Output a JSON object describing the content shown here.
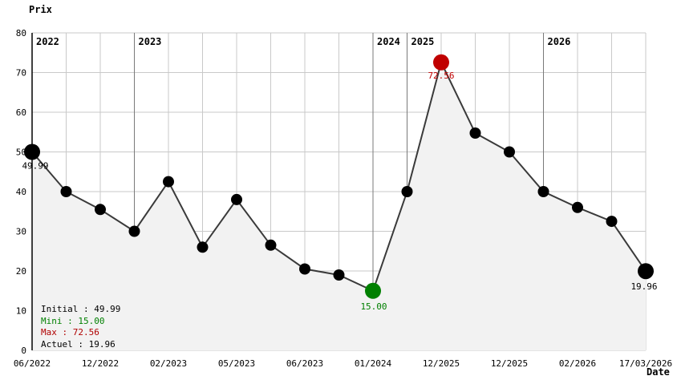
{
  "title": "Prix",
  "x_axis_title": "Date",
  "legend": {
    "entries": [
      {
        "text": "Initial : 49.99",
        "color": "#000000"
      },
      {
        "text": "Mini : 15.00",
        "color": "#008000"
      },
      {
        "text": "Max : 72.56",
        "color": "#b00000"
      },
      {
        "text": "Actuel : 19.96",
        "color": "#000000"
      }
    ]
  },
  "colors": {
    "grid": "#c9c9c9",
    "year_line": "#7a7a7a",
    "area_fill": "#f2f2f2",
    "line": "#3a3a3a",
    "point": "#000000",
    "axis": "#000000",
    "tick_text": "#000000"
  },
  "chart_data": {
    "type": "line",
    "title": "Prix",
    "xlabel": "Date",
    "ylabel": "Prix",
    "ylim": [
      0,
      80
    ],
    "grid": true,
    "area_fill": true,
    "legend_position": "bottom-left",
    "y_ticks": [
      0,
      10,
      20,
      30,
      40,
      50,
      60,
      70,
      80
    ],
    "values": [
      49.99,
      40,
      35.5,
      30,
      42.5,
      26,
      38,
      26.5,
      20.5,
      19,
      15,
      40,
      72.56,
      54.75,
      50,
      40,
      36,
      32.5,
      19.96
    ],
    "x_ticks": [
      {
        "index": 0,
        "label": "06/2022"
      },
      {
        "index": 2,
        "label": "12/2022"
      },
      {
        "index": 4,
        "label": "02/2023"
      },
      {
        "index": 6,
        "label": "05/2023"
      },
      {
        "index": 8,
        "label": "06/2023"
      },
      {
        "index": 10,
        "label": "01/2024"
      },
      {
        "index": 12,
        "label": "12/2025"
      },
      {
        "index": 14,
        "label": "12/2025"
      },
      {
        "index": 16,
        "label": "02/2026"
      },
      {
        "index": 18,
        "label": "17/03/2026"
      }
    ],
    "year_separators": [
      {
        "index": 0,
        "label": "2022"
      },
      {
        "index": 3,
        "label": "2023"
      },
      {
        "index": 10,
        "label": "2024"
      },
      {
        "index": 11,
        "label": "2025"
      },
      {
        "index": 15,
        "label": "2026"
      }
    ],
    "special_points": {
      "initial": {
        "index": 0,
        "value": 49.99,
        "label": "49.99",
        "color": "#000000"
      },
      "min": {
        "index": 10,
        "value": 15,
        "label": "15.00",
        "color": "#008000"
      },
      "max": {
        "index": 12,
        "value": 72.56,
        "label": "72.56",
        "color": "#c00000"
      },
      "current": {
        "index": 18,
        "value": 19.96,
        "label": "19.96",
        "color": "#000000"
      }
    }
  }
}
